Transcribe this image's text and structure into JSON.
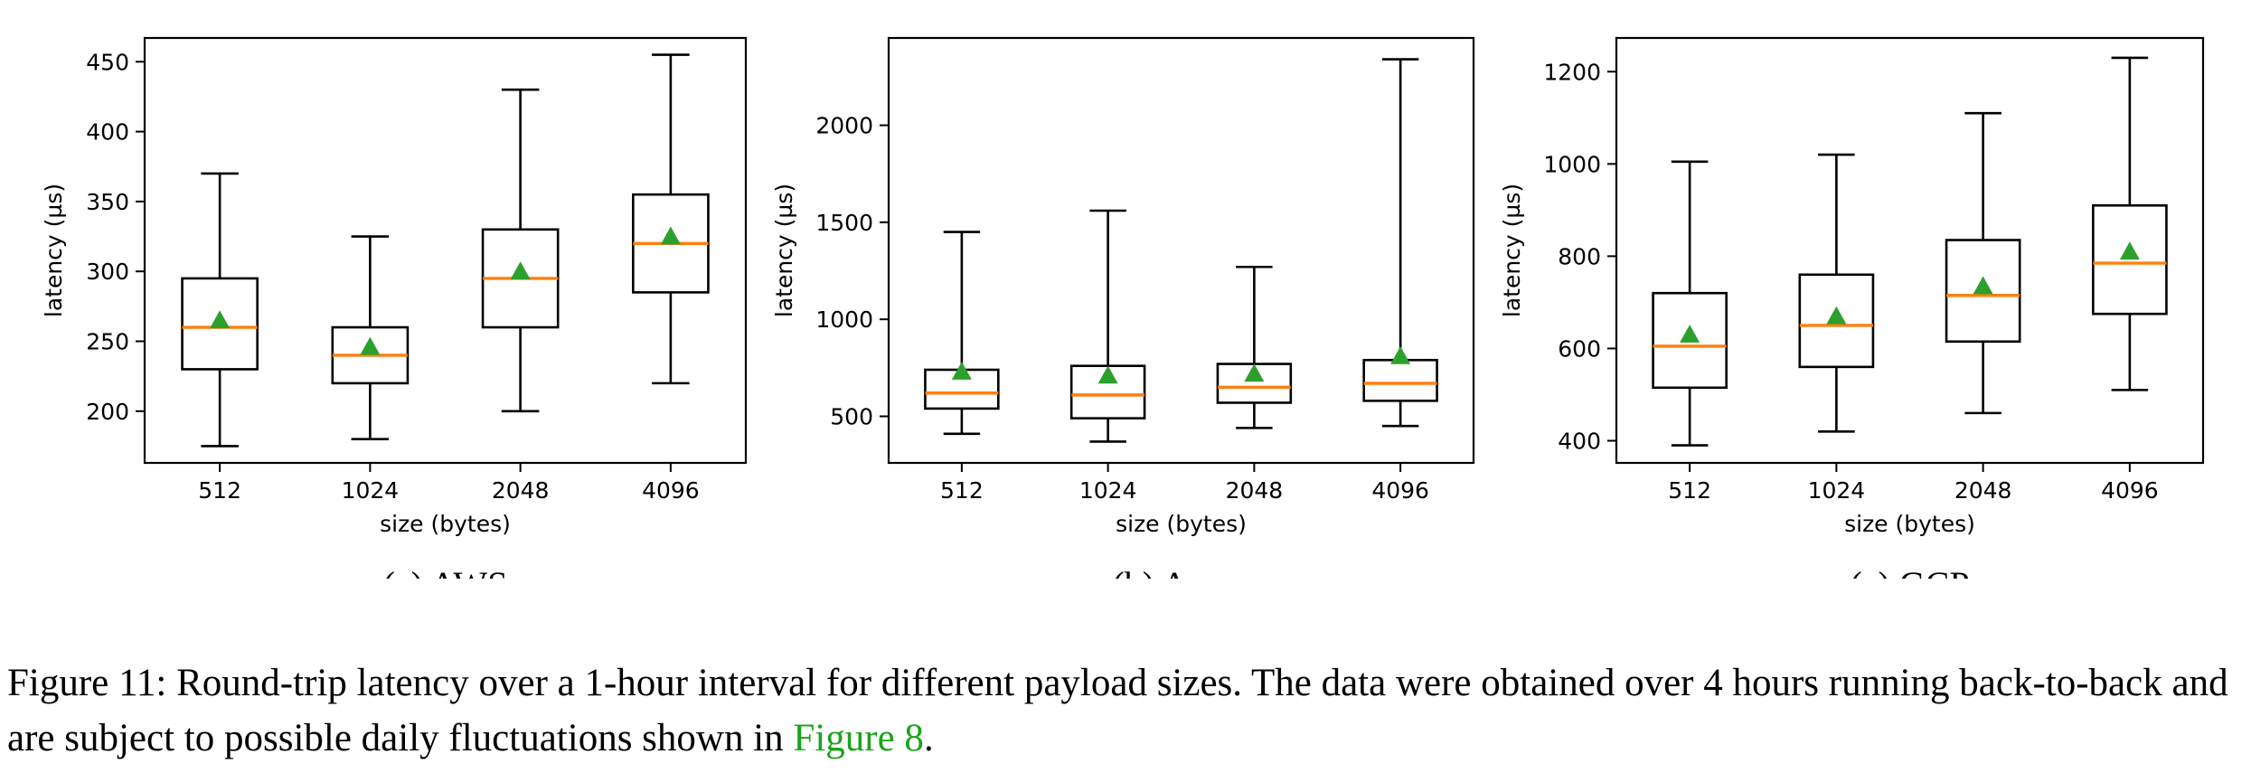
{
  "chart_data": [
    {
      "type": "box",
      "subcaption": "(a) AWS",
      "xlabel": "size (bytes)",
      "ylabel": "latency (µs)",
      "categories": [
        "512",
        "1024",
        "2048",
        "4096"
      ],
      "ylim": [
        163,
        467
      ],
      "yticks": [
        200,
        250,
        300,
        350,
        400,
        450
      ],
      "boxes": [
        {
          "whisker_low": 175,
          "q1": 230,
          "median": 260,
          "q3": 295,
          "whisker_high": 370,
          "mean": 265
        },
        {
          "whisker_low": 180,
          "q1": 220,
          "median": 240,
          "q3": 260,
          "whisker_high": 325,
          "mean": 246
        },
        {
          "whisker_low": 200,
          "q1": 260,
          "median": 295,
          "q3": 330,
          "whisker_high": 430,
          "mean": 300
        },
        {
          "whisker_low": 220,
          "q1": 285,
          "median": 320,
          "q3": 355,
          "whisker_high": 455,
          "mean": 325
        }
      ]
    },
    {
      "type": "box",
      "subcaption": "(b) Azure",
      "xlabel": "size (bytes)",
      "ylabel": "latency (µs)",
      "categories": [
        "512",
        "1024",
        "2048",
        "4096"
      ],
      "ylim": [
        260,
        2450
      ],
      "yticks": [
        500,
        1000,
        1500,
        2000
      ],
      "boxes": [
        {
          "whisker_low": 410,
          "q1": 540,
          "median": 620,
          "q3": 740,
          "whisker_high": 1450,
          "mean": 730
        },
        {
          "whisker_low": 370,
          "q1": 490,
          "median": 610,
          "q3": 760,
          "whisker_high": 1560,
          "mean": 710
        },
        {
          "whisker_low": 440,
          "q1": 570,
          "median": 650,
          "q3": 770,
          "whisker_high": 1270,
          "mean": 720
        },
        {
          "whisker_low": 450,
          "q1": 580,
          "median": 670,
          "q3": 790,
          "whisker_high": 2340,
          "mean": 810
        }
      ]
    },
    {
      "type": "box",
      "subcaption": "(c) GCP",
      "xlabel": "size (bytes)",
      "ylabel": "latency (µs)",
      "categories": [
        "512",
        "1024",
        "2048",
        "4096"
      ],
      "ylim": [
        352,
        1273
      ],
      "yticks": [
        400,
        600,
        800,
        1000,
        1200
      ],
      "boxes": [
        {
          "whisker_low": 390,
          "q1": 515,
          "median": 605,
          "q3": 720,
          "whisker_high": 1005,
          "mean": 630
        },
        {
          "whisker_low": 420,
          "q1": 560,
          "median": 650,
          "q3": 760,
          "whisker_high": 1020,
          "mean": 670
        },
        {
          "whisker_low": 460,
          "q1": 615,
          "median": 715,
          "q3": 835,
          "whisker_high": 1110,
          "mean": 735
        },
        {
          "whisker_low": 510,
          "q1": 675,
          "median": 785,
          "q3": 910,
          "whisker_high": 1230,
          "mean": 810
        }
      ]
    }
  ],
  "colors": {
    "box": "#000000",
    "median": "#ff7f0e",
    "mean": "#2ca02c"
  },
  "caption": {
    "text": "Figure 11: Round-trip latency over a 1-hour interval for different payload sizes. The data were obtained over 4 hours running back-to-back and are subject to possible daily fluctuations shown in ",
    "link": "Figure 8",
    "end": "."
  }
}
